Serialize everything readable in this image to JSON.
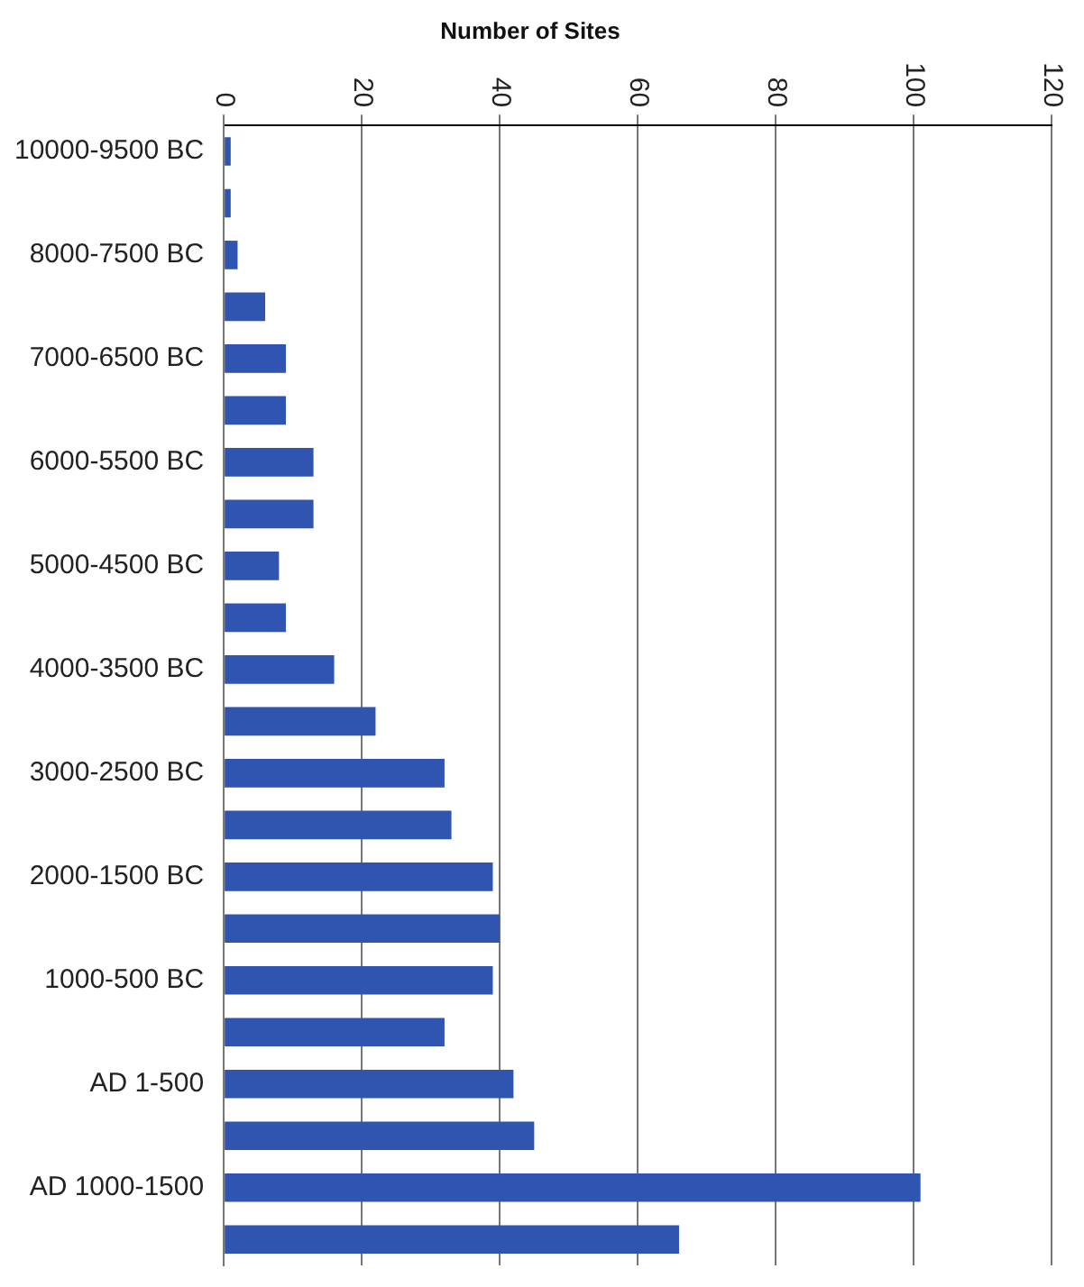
{
  "chart_data": {
    "type": "bar",
    "orientation": "horizontal",
    "title": "Number of Sites",
    "categories": [
      "10000-9500 BC",
      null,
      "8000-7500 BC",
      null,
      "7000-6500 BC",
      null,
      "6000-5500 BC",
      null,
      "5000-4500 BC",
      null,
      "4000-3500 BC",
      null,
      "3000-2500 BC",
      null,
      "2000-1500 BC",
      null,
      "1000-500 BC",
      null,
      "AD 1-500",
      null,
      "AD 1000-1500",
      null
    ],
    "values": [
      1,
      1,
      2,
      6,
      9,
      9,
      13,
      13,
      8,
      9,
      16,
      22,
      32,
      33,
      39,
      40,
      39,
      32,
      42,
      45,
      101,
      66
    ],
    "color": "#2f55b0",
    "xlim": [
      0,
      120
    ],
    "xticks": [
      0,
      20,
      40,
      60,
      80,
      100,
      120
    ],
    "grid": "x",
    "legend": false
  }
}
